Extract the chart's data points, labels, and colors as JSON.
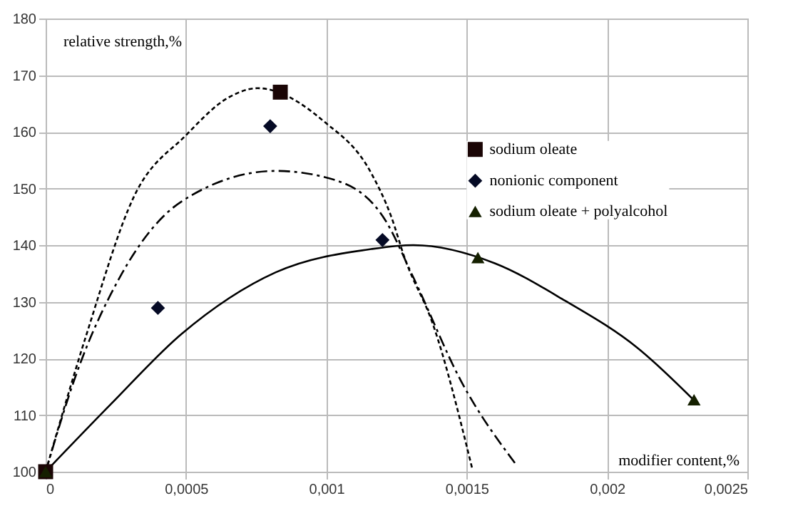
{
  "chart_data": {
    "type": "scatter",
    "xlabel": "modifier content,%",
    "ylabel": "relative strength,%",
    "xlim": [
      0,
      0.0025
    ],
    "xticks": [
      0,
      {
        "value": 0.0005,
        "label": "0,0005"
      },
      {
        "value": 0.001,
        "label": "0,001"
      },
      {
        "value": 0.0015,
        "label": "0,0015"
      },
      {
        "value": 0.002,
        "label": "0,002"
      },
      {
        "value": 0.0025,
        "label": "0,0025"
      }
    ],
    "ylim": [
      100,
      180
    ],
    "yticks": [
      100,
      110,
      120,
      130,
      140,
      150,
      160,
      170,
      180
    ],
    "grid": true,
    "legend": "right",
    "series": [
      {
        "type": "line",
        "line_style": "dashed",
        "marker": "none",
        "color": "#000000",
        "x": [
          0,
          0.000146,
          0.000315,
          0.0005,
          0.000653,
          0.000755,
          0.00099,
          0.00116,
          0.00123,
          0.00128,
          0.00138,
          0.00152
        ],
        "values": [
          100,
          124.3,
          148.6,
          159.4,
          166.1,
          167.7,
          161.9,
          152.7,
          145.2,
          137.6,
          126,
          100.5
        ]
      },
      {
        "type": "line",
        "line_style": "dashdot",
        "marker": "none",
        "color": "#000000",
        "x": [
          0,
          0.000112,
          0.000264,
          0.000484,
          0.00082,
          0.00103,
          0.00121,
          0.00131,
          0.00148,
          0.00168
        ],
        "values": [
          100,
          117.6,
          134.3,
          147.7,
          153.1,
          151.5,
          144.4,
          134.3,
          116,
          101
        ]
      },
      {
        "type": "line",
        "line_style": "solid",
        "marker": "none",
        "color": "#000000",
        "x": [
          0,
          0.00023,
          0.000484,
          0.00082,
          0.00116,
          0.00131,
          0.0016,
          0.00185,
          0.00211,
          0.00231
        ],
        "values": [
          100,
          111.8,
          124.3,
          135.2,
          139.3,
          140,
          136.8,
          130.2,
          121.8,
          112.6
        ]
      },
      {
        "type": "scatter",
        "name": "sodium oleate",
        "marker": "square",
        "color": "#1a0505",
        "x": [
          0,
          0.000836
        ],
        "values": [
          100,
          167
        ]
      },
      {
        "type": "scatter",
        "name": "nonionic component",
        "marker": "diamond",
        "color": "#050a25",
        "x": [
          0.0004,
          0.0008,
          0.0012
        ],
        "values": [
          128.9,
          161,
          140.9
        ]
      },
      {
        "type": "scatter",
        "name": "sodium oleate + polyalcohol",
        "marker": "triangle",
        "color": "#152000",
        "x": [
          0,
          0.00154,
          0.00231
        ],
        "values": [
          100,
          137.8,
          112.7
        ]
      }
    ]
  }
}
